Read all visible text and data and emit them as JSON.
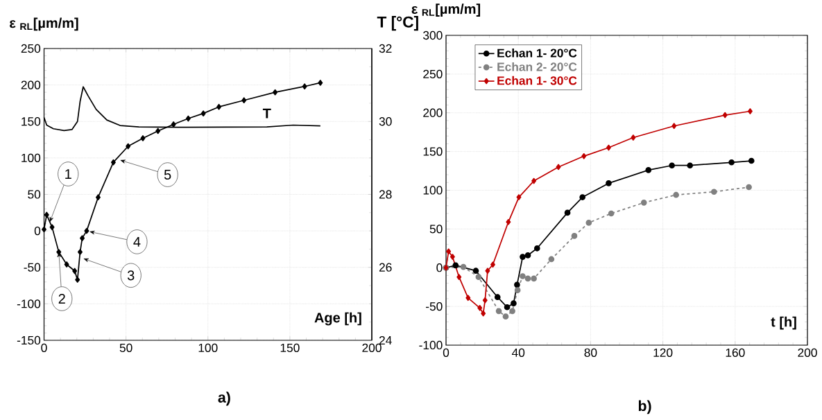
{
  "chart_data": [
    {
      "type": "line",
      "xlabel": "Age [h]",
      "ylabel": "ε $_{RL}$[µm/m]",
      "y2label": "T [°C]",
      "xlim": [
        0,
        200
      ],
      "xticks": [
        0,
        50,
        100,
        150,
        200
      ],
      "ylim": [
        -150,
        250
      ],
      "yticks": [
        -150,
        -100,
        -50,
        0,
        50,
        100,
        150,
        200,
        250
      ],
      "y2lim": [
        24,
        32
      ],
      "y2ticks": [
        24,
        26,
        28,
        30,
        32
      ],
      "grid": true,
      "legend": false,
      "series": [
        {
          "color": "#000000",
          "marker": "diamond",
          "line_style": "solid",
          "x": [
            0,
            1.6,
            4.9,
            9,
            13.8,
            18.7,
            20.4,
            22,
            23.3,
            26,
            33,
            42.3,
            51.3,
            60.3,
            69.5,
            79,
            88,
            97.2,
            106.7,
            122,
            141,
            159,
            168.6
          ],
          "values": [
            2,
            22,
            5,
            -29,
            -46,
            -55,
            -67,
            -29,
            -10,
            0,
            46,
            94,
            116,
            127,
            137,
            146,
            154,
            161,
            170,
            179,
            190,
            198,
            203
          ]
        },
        {
          "name": "T",
          "axis": "y2",
          "color": "#000000",
          "marker": "none",
          "line_style": "solid",
          "x": [
            0,
            1.6,
            5.7,
            12.2,
            17.1,
            20.4,
            22,
            23.9,
            26.9,
            31.8,
            38.3,
            46.4,
            57.8,
            87,
            136,
            152,
            168.6
          ],
          "values": [
            30.11,
            29.9,
            29.8,
            29.75,
            29.78,
            30.0,
            30.55,
            30.95,
            30.7,
            30.33,
            30.04,
            29.89,
            29.85,
            29.84,
            29.85,
            29.9,
            29.88
          ]
        }
      ],
      "annotations": [
        {
          "text": "1",
          "x": 3.5,
          "y": 12
        },
        {
          "text": "2",
          "x": 9,
          "y": -29
        },
        {
          "text": "3",
          "x": 24,
          "y": -38
        },
        {
          "text": "4",
          "x": 27.7,
          "y": -1
        },
        {
          "text": "5",
          "x": 46.4,
          "y": 97
        },
        "a)"
      ]
    },
    {
      "type": "line",
      "xlabel": "t [h]",
      "ylabel": "ε $_{RL}$[µm/m]",
      "xlim": [
        0,
        200
      ],
      "xticks": [
        0,
        40,
        80,
        120,
        160,
        200
      ],
      "ylim": [
        -100,
        300
      ],
      "yticks": [
        -100,
        -50,
        0,
        50,
        100,
        150,
        200,
        250,
        300
      ],
      "grid": true,
      "legend": "top left",
      "series": [
        {
          "name": "Echan 1- 20°C",
          "color": "#000000",
          "marker": "circle",
          "line_style": "solid",
          "x": [
            0,
            5.3,
            16.5,
            28.5,
            33.8,
            37.4,
            39.3,
            42.4,
            45.3,
            50.4,
            67.2,
            75.5,
            90,
            112,
            125,
            135,
            158,
            169
          ],
          "values": [
            0,
            3,
            -4,
            -38,
            -51,
            -46,
            -22,
            14,
            16,
            25,
            71,
            91,
            109,
            126,
            132,
            132,
            136,
            138
          ]
        },
        {
          "name": "Echan 2- 20°C",
          "color": "#808080",
          "marker": "circle",
          "line_style": "dashed",
          "x": [
            0,
            9.6,
            18,
            29.2,
            33,
            36.7,
            39.6,
            42.4,
            45.3,
            48.6,
            58.3,
            71,
            79,
            91.4,
            109.5,
            127.3,
            148.3,
            167.6
          ],
          "values": [
            0,
            1,
            -12,
            -56,
            -63,
            -56,
            -29,
            -11,
            -14,
            -14,
            11,
            41,
            58,
            70,
            84,
            94,
            98,
            104
          ]
        },
        {
          "name": "Echan 1- 30°C",
          "color": "#c00000",
          "marker": "diamond",
          "line_style": "solid",
          "x": [
            0,
            1.4,
            3.6,
            7.2,
            12.2,
            18.7,
            20.6,
            21.6,
            23,
            25.9,
            34.5,
            40.3,
            48.6,
            62.2,
            76.3,
            90,
            103.6,
            126.2,
            154.4,
            168.3
          ],
          "values": [
            0,
            21,
            14,
            -12,
            -39,
            -52,
            -59,
            -42,
            -4,
            4,
            59,
            91,
            112,
            130,
            144,
            155,
            168,
            183,
            197,
            202
          ]
        }
      ],
      "annotations": [
        "b)"
      ]
    }
  ]
}
